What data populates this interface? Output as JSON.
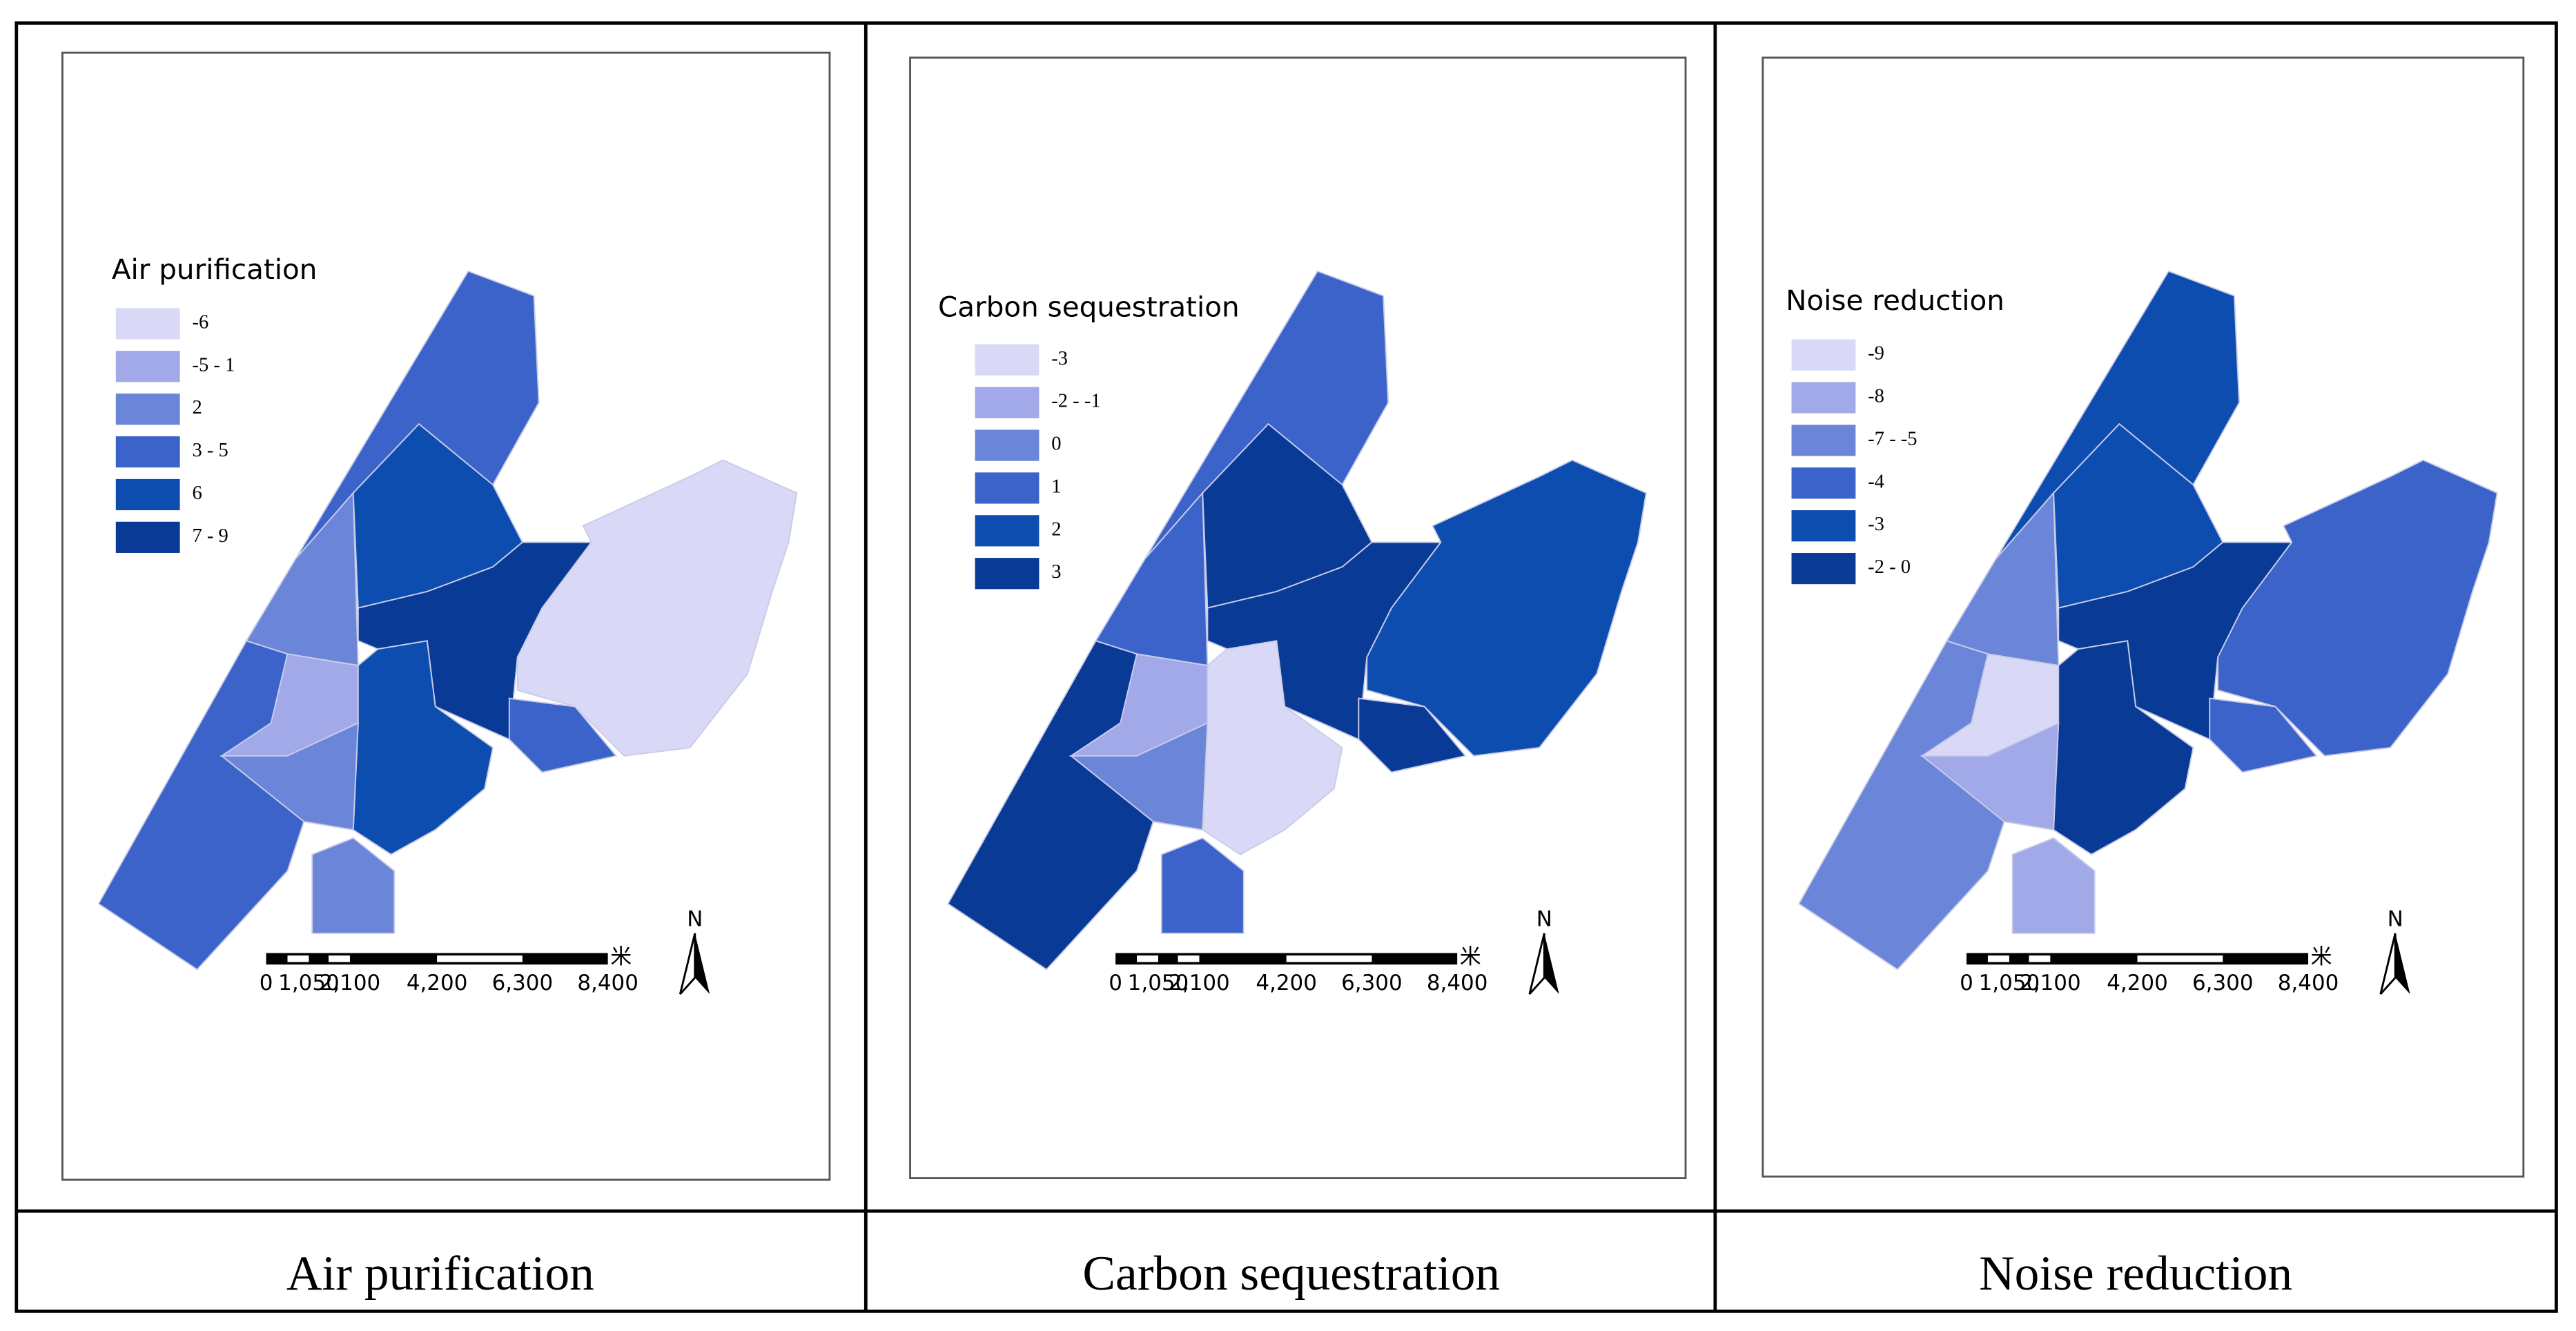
{
  "panels": [
    {
      "legend": {
        "title": "Air purification",
        "items": [
          {
            "label": "-6",
            "color": "#d9d9f7"
          },
          {
            "label": "-5 - 1",
            "color": "#a2a9e8"
          },
          {
            "label": "2",
            "color": "#6b86d8"
          },
          {
            "label": "3 - 5",
            "color": "#3c63c9"
          },
          {
            "label": "6",
            "color": "#0d4db0"
          },
          {
            "label": "7 - 9",
            "color": "#083a96"
          }
        ]
      },
      "scale": {
        "labels": [
          "0",
          "1,050",
          "2,100",
          "4,200",
          "6,300",
          "8,400"
        ],
        "unit": "米"
      },
      "north": "N",
      "caption": "Air purification"
    },
    {
      "legend": {
        "title": "Carbon sequestration",
        "items": [
          {
            "label": "-3",
            "color": "#d9d9f7"
          },
          {
            "label": "-2 - -1",
            "color": "#a2a9e8"
          },
          {
            "label": "0",
            "color": "#6b86d8"
          },
          {
            "label": "1",
            "color": "#3c63c9"
          },
          {
            "label": "2",
            "color": "#0d4db0"
          },
          {
            "label": "3",
            "color": "#083a96"
          }
        ]
      },
      "scale": {
        "labels": [
          "0",
          "1,050",
          "2,100",
          "4,200",
          "6,300",
          "8,400"
        ],
        "unit": "米"
      },
      "north": "N",
      "caption": "Carbon sequestration"
    },
    {
      "legend": {
        "title": "Noise reduction",
        "items": [
          {
            "label": "-9",
            "color": "#d9d9f7"
          },
          {
            "label": "-8",
            "color": "#a2a9e8"
          },
          {
            "label": "-7 - -5",
            "color": "#6b86d8"
          },
          {
            "label": "-4",
            "color": "#3c63c9"
          },
          {
            "label": "-3",
            "color": "#0d4db0"
          },
          {
            "label": "-2 - 0",
            "color": "#083a96"
          }
        ]
      },
      "scale": {
        "labels": [
          "0",
          "1,050",
          "2,100",
          "4,200",
          "6,300",
          "8,400"
        ],
        "unit": "米"
      },
      "north": "N",
      "caption": "Noise reduction"
    }
  ]
}
